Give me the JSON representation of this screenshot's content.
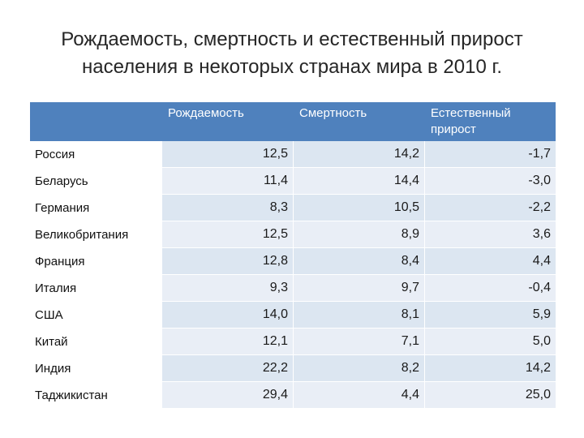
{
  "title": {
    "line1": "Рождаемость, смертность и естественный прирост",
    "line2": "населения в некоторых странах мира в 2010 г."
  },
  "table": {
    "headers": [
      "",
      "Рождаемость",
      "Смертность",
      "Естественный прирост"
    ],
    "rows": [
      {
        "country": "Россия",
        "birth": "12,5",
        "death": "14,2",
        "growth": "-1,7"
      },
      {
        "country": "Беларусь",
        "birth": "11,4",
        "death": "14,4",
        "growth": "-3,0"
      },
      {
        "country": "Германия",
        "birth": "8,3",
        "death": "10,5",
        "growth": "-2,2"
      },
      {
        "country": "Великобритания",
        "birth": "12,5",
        "death": "8,9",
        "growth": "3,6"
      },
      {
        "country": "Франция",
        "birth": "12,8",
        "death": "8,4",
        "growth": "4,4"
      },
      {
        "country": "Италия",
        "birth": "9,3",
        "death": "9,7",
        "growth": "-0,4"
      },
      {
        "country": "США",
        "birth": "14,0",
        "death": "8,1",
        "growth": "5,9"
      },
      {
        "country": "Китай",
        "birth": "12,1",
        "death": "7,1",
        "growth": "5,0"
      },
      {
        "country": "Индия",
        "birth": "22,2",
        "death": "8,2",
        "growth": "14,2"
      },
      {
        "country": "Таджикистан",
        "birth": "29,4",
        "death": "4,4",
        "growth": "25,0"
      }
    ]
  },
  "colors": {
    "header_bg": "#4f81bd",
    "cell_bg": "#dce6f1",
    "cell_bg_alt": "#e9eef6"
  }
}
